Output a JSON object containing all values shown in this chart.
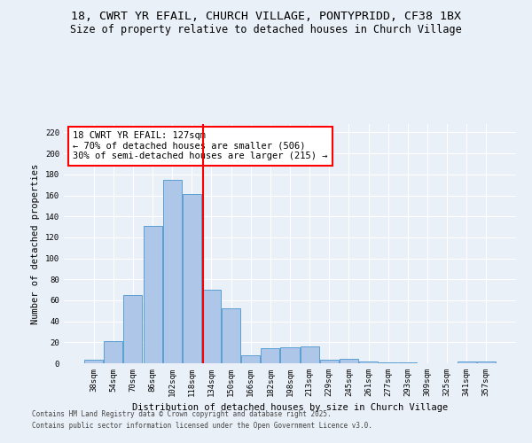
{
  "title_line1": "18, CWRT YR EFAIL, CHURCH VILLAGE, PONTYPRIDD, CF38 1BX",
  "title_line2": "Size of property relative to detached houses in Church Village",
  "xlabel": "Distribution of detached houses by size in Church Village",
  "ylabel": "Number of detached properties",
  "categories": [
    "38sqm",
    "54sqm",
    "70sqm",
    "86sqm",
    "102sqm",
    "118sqm",
    "134sqm",
    "150sqm",
    "166sqm",
    "182sqm",
    "198sqm",
    "213sqm",
    "229sqm",
    "245sqm",
    "261sqm",
    "277sqm",
    "293sqm",
    "309sqm",
    "325sqm",
    "341sqm",
    "357sqm"
  ],
  "values": [
    3,
    21,
    65,
    131,
    175,
    161,
    70,
    52,
    8,
    14,
    15,
    16,
    3,
    4,
    2,
    1,
    1,
    0,
    0,
    2,
    2
  ],
  "bar_color": "#aec6e8",
  "bar_edge_color": "#5a9fd4",
  "vline_color": "red",
  "annotation_line1": "18 CWRT YR EFAIL: 127sqm",
  "annotation_line2": "← 70% of detached houses are smaller (506)",
  "annotation_line3": "30% of semi-detached houses are larger (215) →",
  "annotation_box_color": "white",
  "annotation_box_edge_color": "red",
  "ylim": [
    0,
    228
  ],
  "yticks": [
    0,
    20,
    40,
    60,
    80,
    100,
    120,
    140,
    160,
    180,
    200,
    220
  ],
  "background_color": "#eaf0f8",
  "footer_line1": "Contains HM Land Registry data © Crown copyright and database right 2025.",
  "footer_line2": "Contains public sector information licensed under the Open Government Licence v3.0.",
  "title_fontsize": 9.5,
  "subtitle_fontsize": 8.5,
  "tick_fontsize": 6.5,
  "label_fontsize": 7.5,
  "annotation_fontsize": 7.5,
  "footer_fontsize": 5.5
}
